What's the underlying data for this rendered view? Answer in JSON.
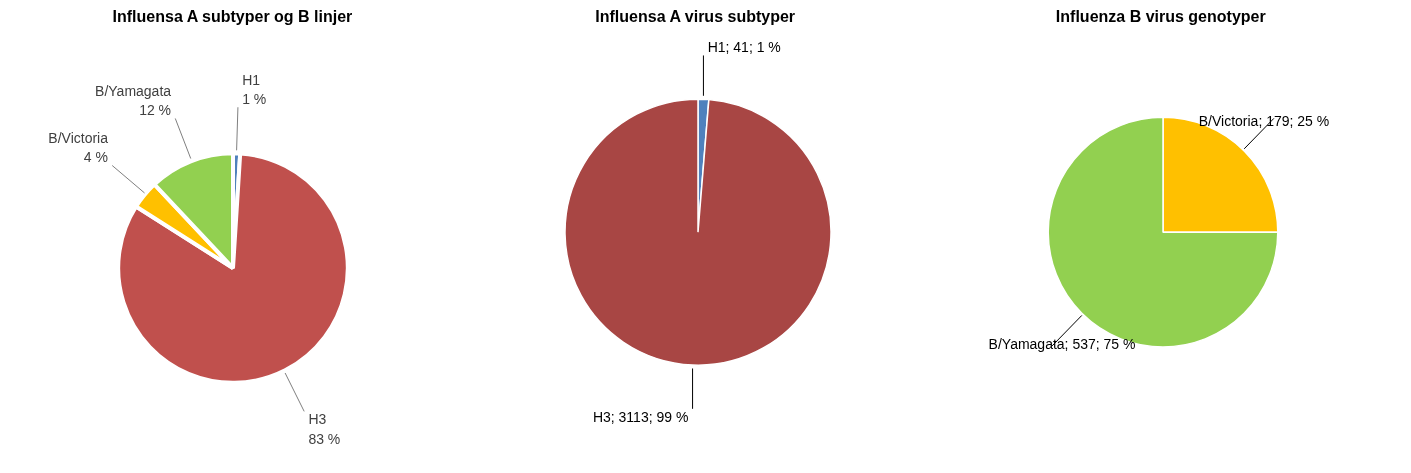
{
  "chart_data": [
    {
      "type": "pie",
      "title": "Influensa A subtyper og B linjer",
      "categories": [
        "H1",
        "H3",
        "B/Victoria",
        "B/Yamagata"
      ],
      "values": [
        1,
        83,
        4,
        12
      ],
      "colors": [
        "#4f81bd",
        "#c0504d",
        "#ffc000",
        "#92d050"
      ],
      "value_labels": [
        "1 %",
        "83 %",
        "4 %",
        "12 %"
      ]
    },
    {
      "type": "pie",
      "title": "Influensa  A virus subtyper",
      "categories": [
        "H1",
        "H3"
      ],
      "values": [
        41,
        3113
      ],
      "colors": [
        "#4f81bd",
        "#a84644"
      ],
      "value_labels": [
        "41; 1 %",
        "3113; 99 %"
      ]
    },
    {
      "type": "pie",
      "title": "Influenza  B virus genotyper",
      "categories": [
        "B/Victoria",
        "B/Yamagata"
      ],
      "values": [
        179,
        537
      ],
      "colors": [
        "#ffc000",
        "#92d050"
      ],
      "value_labels": [
        "179; 25 %",
        "537; 75 %"
      ]
    }
  ]
}
